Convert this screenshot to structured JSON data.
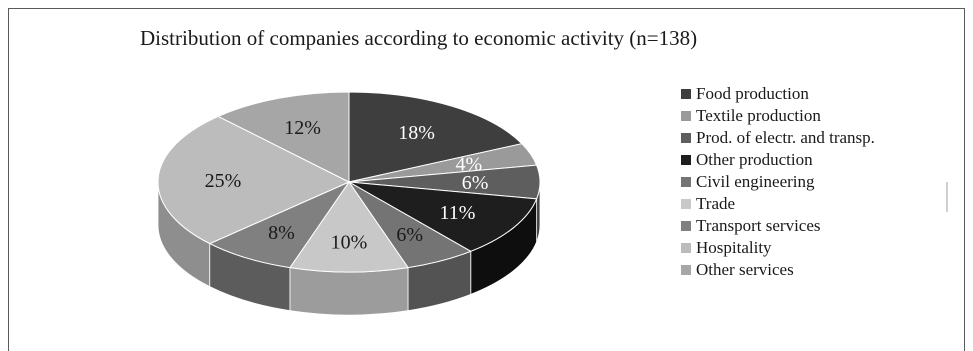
{
  "chart_data": {
    "type": "pie",
    "title": "Distribution of companies according to economic activity (n=138)",
    "slices": [
      {
        "label": "Food production",
        "value": 18,
        "display": "18%",
        "color": "#3e3e3e",
        "side": "#2a2a2a",
        "text": "#ffffff"
      },
      {
        "label": "Textile production",
        "value": 4,
        "display": "4%",
        "color": "#9a9a9a",
        "side": "#6e6e6e",
        "text": "#ffffff"
      },
      {
        "label": "Prod. of electr. and transp.",
        "value": 6,
        "display": "6%",
        "color": "#5e5e5e",
        "side": "#444444",
        "text": "#ffffff"
      },
      {
        "label": "Other production",
        "value": 11,
        "display": "11%",
        "color": "#1e1e1e",
        "side": "#0e0e0e",
        "text": "#ffffff"
      },
      {
        "label": "Civil engineering",
        "value": 6,
        "display": "6%",
        "color": "#747474",
        "side": "#535353",
        "text": "#1a1a1a"
      },
      {
        "label": "Trade",
        "value": 10,
        "display": "10%",
        "color": "#c8c8c8",
        "side": "#9c9c9c",
        "text": "#1a1a1a"
      },
      {
        "label": "Transport services",
        "value": 8,
        "display": "8%",
        "color": "#808080",
        "side": "#5c5c5c",
        "text": "#1a1a1a"
      },
      {
        "label": "Hospitality",
        "value": 25,
        "display": "25%",
        "color": "#bcbcbc",
        "side": "#8e8e8e",
        "text": "#1a1a1a"
      },
      {
        "label": "Other services",
        "value": 12,
        "display": "12%",
        "color": "#a6a6a6",
        "side": "#7a7a7a",
        "text": "#1a1a1a"
      }
    ],
    "legend_position": "right"
  }
}
